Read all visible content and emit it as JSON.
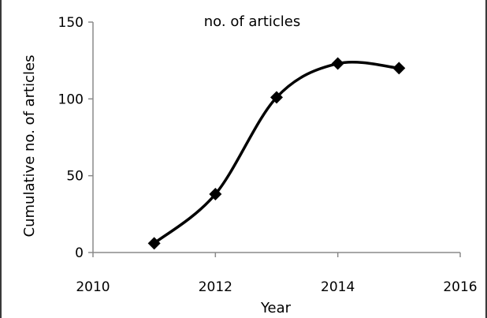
{
  "chart_data": {
    "type": "line",
    "title": "no. of articles",
    "xlabel": "Year",
    "ylabel": "Cumulative no. of articles",
    "xlim": [
      2010,
      2016
    ],
    "ylim": [
      0,
      150
    ],
    "xticks": [
      2010,
      2012,
      2014,
      2016
    ],
    "yticks": [
      0,
      50,
      100,
      150
    ],
    "grid": false,
    "legend": "none",
    "smooth": true,
    "marker": "diamond",
    "color": "#000000",
    "x": [
      2011,
      2012,
      2013,
      2014,
      2015
    ],
    "y": [
      6,
      38,
      101,
      123,
      120
    ]
  }
}
